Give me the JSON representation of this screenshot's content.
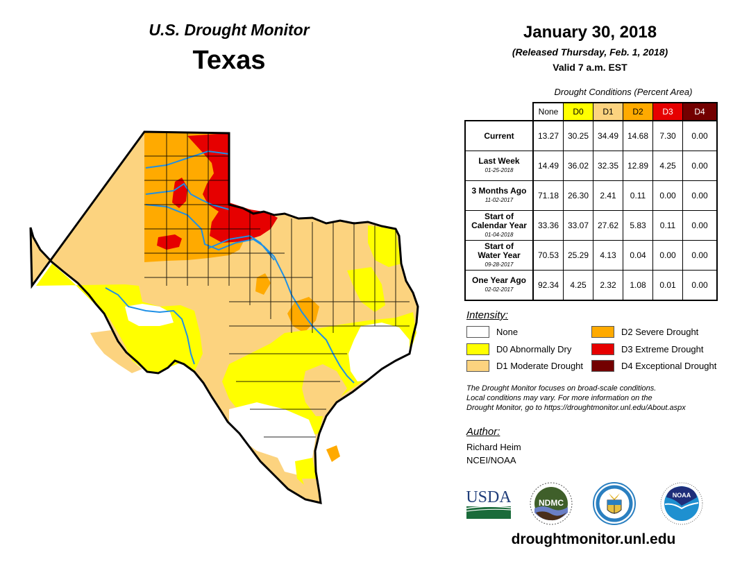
{
  "header": {
    "product": "U.S. Drought Monitor",
    "region": "Texas",
    "date": "January 30, 2018",
    "released": "(Released Thursday, Feb. 1, 2018)",
    "valid": "Valid 7 a.m. EST"
  },
  "table": {
    "caption": "Drought Conditions (Percent Area)",
    "columns": [
      {
        "label": "None",
        "color": "#ffffff",
        "text_color": "#000000"
      },
      {
        "label": "D0",
        "color": "#ffff00",
        "text_color": "#000000"
      },
      {
        "label": "D1",
        "color": "#fcd37f",
        "text_color": "#000000"
      },
      {
        "label": "D2",
        "color": "#ffaa00",
        "text_color": "#000000"
      },
      {
        "label": "D3",
        "color": "#e60000",
        "text_color": "#ffffff"
      },
      {
        "label": "D4",
        "color": "#730000",
        "text_color": "#ffffff"
      }
    ],
    "rows": [
      {
        "label": "Current",
        "date": "",
        "values": [
          "13.27",
          "30.25",
          "34.49",
          "14.68",
          "7.30",
          "0.00"
        ]
      },
      {
        "label": "Last Week",
        "date": "01-25-2018",
        "values": [
          "14.49",
          "36.02",
          "32.35",
          "12.89",
          "4.25",
          "0.00"
        ]
      },
      {
        "label": "3 Months Ago",
        "date": "11-02-2017",
        "values": [
          "71.18",
          "26.30",
          "2.41",
          "0.11",
          "0.00",
          "0.00"
        ]
      },
      {
        "label": "Start of Calendar Year",
        "date": "01-04-2018",
        "values": [
          "33.36",
          "33.07",
          "27.62",
          "5.83",
          "0.11",
          "0.00"
        ]
      },
      {
        "label": "Start of Water Year",
        "date": "09-28-2017",
        "values": [
          "70.53",
          "25.29",
          "4.13",
          "0.04",
          "0.00",
          "0.00"
        ]
      },
      {
        "label": "One Year Ago",
        "date": "02-02-2017",
        "values": [
          "92.34",
          "4.25",
          "2.32",
          "1.08",
          "0.01",
          "0.00"
        ]
      }
    ]
  },
  "legend": {
    "title": "Intensity:",
    "items": [
      {
        "label": "None",
        "color": "#ffffff"
      },
      {
        "label": "D0 Abnormally Dry",
        "color": "#ffff00"
      },
      {
        "label": "D1 Moderate Drought",
        "color": "#fcd37f"
      },
      {
        "label": "D2 Severe Drought",
        "color": "#ffaa00"
      },
      {
        "label": "D3 Extreme Drought",
        "color": "#e60000"
      },
      {
        "label": "D4 Exceptional Drought",
        "color": "#730000"
      }
    ]
  },
  "note": {
    "line1": "The Drought Monitor focuses on broad-scale conditions.",
    "line2": "Local conditions may vary. For more information on the",
    "line3": "Drought Monitor, go to https://droughtmonitor.unl.edu/About.aspx"
  },
  "author": {
    "label": "Author:",
    "name": "Richard Heim",
    "org": "NCEI/NOAA"
  },
  "logos": {
    "usda": "USDA",
    "ndmc": "NDMC",
    "noaa": "NOAA"
  },
  "footer": {
    "site": "droughtmonitor.unl.edu"
  },
  "map": {
    "river_color": "#1e90e6",
    "border_color": "#000000"
  }
}
